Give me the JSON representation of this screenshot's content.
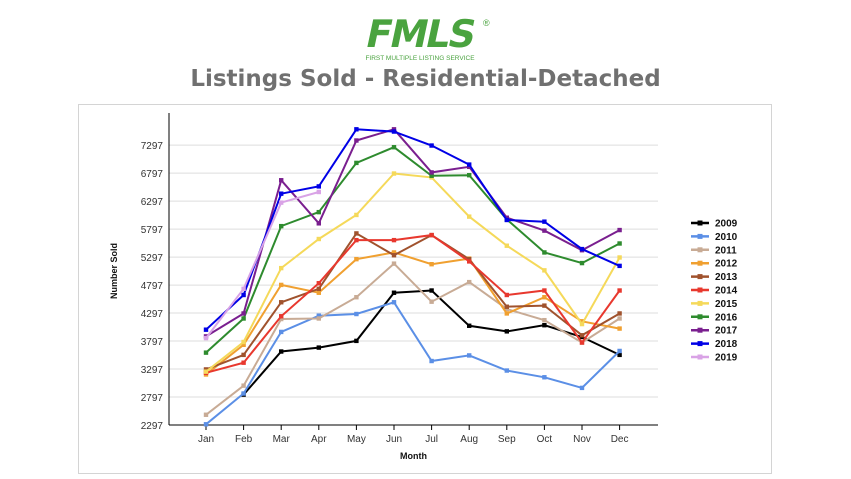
{
  "logo": {
    "text": "FMLS",
    "registered": "®",
    "tagline": "FIRST MULTIPLE LISTING SERVICE",
    "color": "#4aa33f"
  },
  "chart_data": {
    "type": "line",
    "title": "Listings Sold - Residential-Detached",
    "xlabel": "Month",
    "ylabel": "Number Sold",
    "categories": [
      "Jan",
      "Feb",
      "Mar",
      "Apr",
      "May",
      "Jun",
      "Jul",
      "Aug",
      "Sep",
      "Oct",
      "Nov",
      "Dec"
    ],
    "yticks": [
      2297,
      2797,
      3297,
      3797,
      4297,
      4797,
      5297,
      5797,
      6297,
      6797,
      7297
    ],
    "ylim": [
      2297,
      7800
    ],
    "grid": "horizontal",
    "legend": "right",
    "series": [
      {
        "name": "2009",
        "color": "#000000",
        "values": [
          null,
          2840,
          3610,
          3680,
          3800,
          4660,
          4700,
          4070,
          3970,
          4080,
          3870,
          3550
        ]
      },
      {
        "name": "2010",
        "color": "#5b8fe6",
        "values": [
          2310,
          2860,
          3960,
          4250,
          4280,
          4490,
          3440,
          3540,
          3270,
          3150,
          2960,
          3620
        ]
      },
      {
        "name": "2011",
        "color": "#c8ab95",
        "values": [
          2480,
          3000,
          4190,
          4200,
          4580,
          5180,
          4500,
          4850,
          4370,
          4170,
          3770,
          4200
        ]
      },
      {
        "name": "2012",
        "color": "#f0a030",
        "values": [
          3200,
          3730,
          4800,
          4660,
          5260,
          5380,
          5170,
          5270,
          4290,
          4580,
          4150,
          4020
        ]
      },
      {
        "name": "2013",
        "color": "#a0522d",
        "values": [
          3290,
          3550,
          4490,
          4730,
          5720,
          5330,
          5690,
          5260,
          4410,
          4430,
          3900,
          4290
        ]
      },
      {
        "name": "2014",
        "color": "#e8382e",
        "values": [
          3230,
          3410,
          4240,
          4830,
          5600,
          5600,
          5690,
          5220,
          4620,
          4700,
          3770,
          4700
        ]
      },
      {
        "name": "2015",
        "color": "#f5d95a",
        "values": [
          3250,
          3780,
          5100,
          5620,
          6050,
          6790,
          6720,
          6020,
          5500,
          5060,
          4100,
          5290
        ]
      },
      {
        "name": "2016",
        "color": "#2e8b2e",
        "values": [
          3590,
          4200,
          5850,
          6100,
          6980,
          7260,
          6750,
          6760,
          5970,
          5380,
          5190,
          5540
        ]
      },
      {
        "name": "2017",
        "color": "#7a1f8f",
        "values": [
          3880,
          4290,
          6670,
          5900,
          7380,
          7580,
          6810,
          6910,
          6000,
          5770,
          5420,
          5780
        ]
      },
      {
        "name": "2018",
        "color": "#0000e6",
        "values": [
          4000,
          4620,
          6430,
          6560,
          7580,
          7540,
          7290,
          6950,
          5960,
          5930,
          5440,
          5140
        ]
      },
      {
        "name": "2019",
        "color": "#d9a3e6",
        "values": [
          3850,
          4730,
          6270,
          6460,
          null,
          null,
          null,
          null,
          null,
          null,
          null,
          null
        ]
      }
    ]
  }
}
